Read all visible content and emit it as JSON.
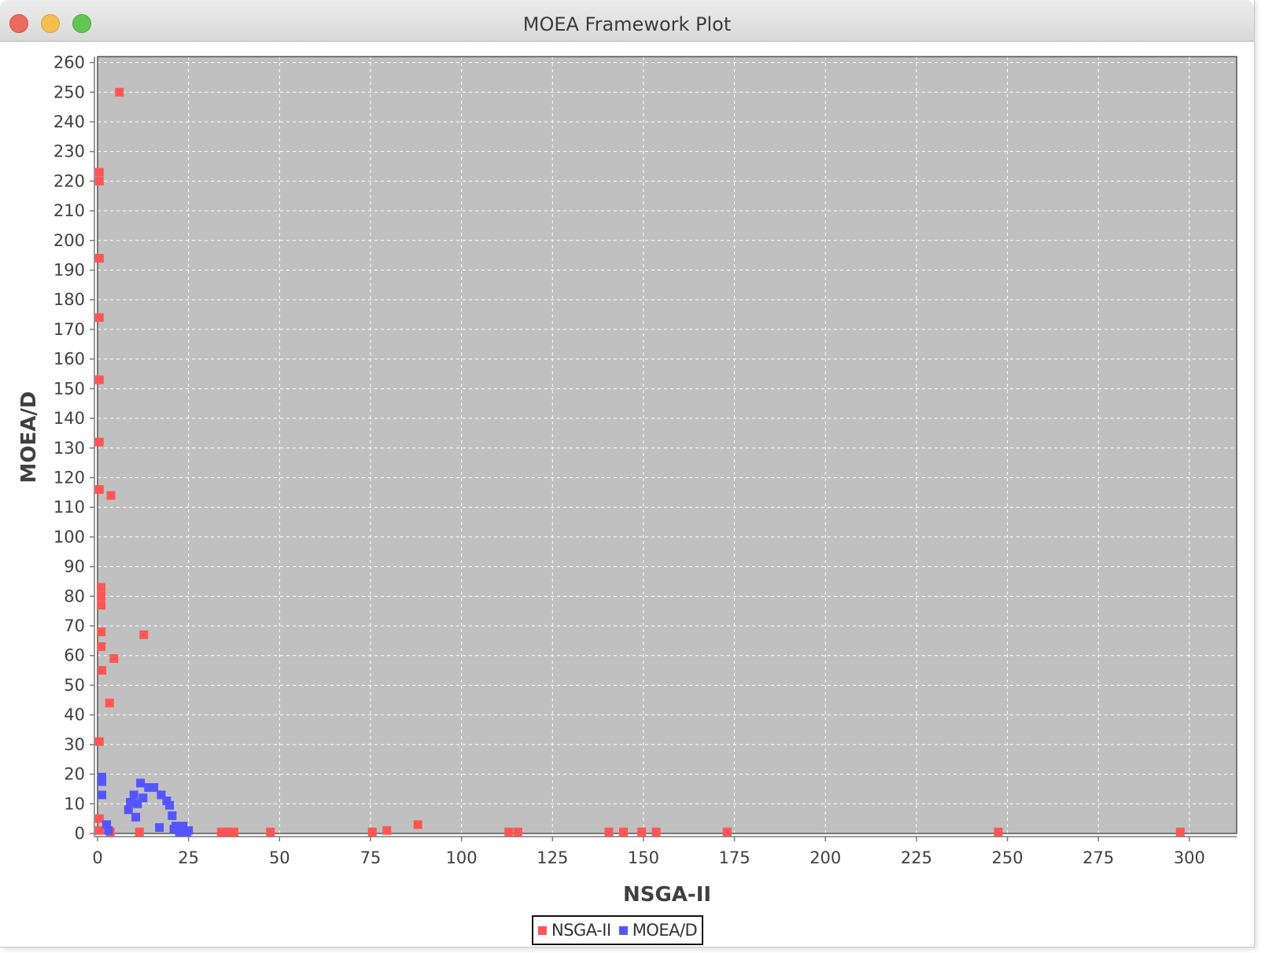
{
  "window": {
    "title": "MOEA Framework Plot"
  },
  "chart_data": {
    "type": "scatter",
    "xlabel": "NSGA-II",
    "ylabel": "MOEA/D",
    "xlim": [
      0,
      313
    ],
    "ylim": [
      0,
      262
    ],
    "xticks": [
      0,
      25,
      50,
      75,
      100,
      125,
      150,
      175,
      200,
      225,
      250,
      275,
      300
    ],
    "yticks": [
      0,
      10,
      20,
      30,
      40,
      50,
      60,
      70,
      80,
      90,
      100,
      110,
      120,
      130,
      140,
      150,
      160,
      170,
      180,
      190,
      200,
      210,
      220,
      230,
      240,
      250,
      260
    ],
    "grid": true,
    "legend_position": "bottom-center",
    "series": [
      {
        "name": "NSGA-II",
        "color": "#ff5555",
        "points": [
          [
            6,
            250
          ],
          [
            0.5,
            223
          ],
          [
            0.5,
            220
          ],
          [
            0.5,
            194
          ],
          [
            0.5,
            174
          ],
          [
            0.5,
            153
          ],
          [
            0.5,
            132
          ],
          [
            0.5,
            116
          ],
          [
            3.7,
            114
          ],
          [
            1,
            83
          ],
          [
            1,
            80
          ],
          [
            1,
            77
          ],
          [
            1,
            68
          ],
          [
            12.7,
            67
          ],
          [
            1,
            63
          ],
          [
            4.5,
            59
          ],
          [
            1.2,
            55
          ],
          [
            3.3,
            44
          ],
          [
            0.5,
            31
          ],
          [
            0.5,
            5
          ],
          [
            0.5,
            1
          ],
          [
            3.5,
            0.5
          ],
          [
            11.5,
            0.5
          ],
          [
            34,
            0.5
          ],
          [
            36,
            0.5
          ],
          [
            37.5,
            0.5
          ],
          [
            47.5,
            0.5
          ],
          [
            75.5,
            0.5
          ],
          [
            79.5,
            1
          ],
          [
            88,
            3
          ],
          [
            113,
            0.5
          ],
          [
            115.5,
            0.5
          ],
          [
            140.5,
            0.5
          ],
          [
            144.5,
            0.5
          ],
          [
            149.5,
            0.5
          ],
          [
            153.5,
            0.5
          ],
          [
            173,
            0.5
          ],
          [
            247.5,
            0.5
          ],
          [
            297.5,
            0.5
          ]
        ]
      },
      {
        "name": "MOEA/D",
        "color": "#5555ff",
        "points": [
          [
            1.2,
            19
          ],
          [
            1.2,
            17.5
          ],
          [
            1.2,
            13
          ],
          [
            2.5,
            3
          ],
          [
            3,
            1
          ],
          [
            8.5,
            8
          ],
          [
            9,
            10.5
          ],
          [
            10,
            13
          ],
          [
            10.5,
            5.5
          ],
          [
            11,
            10
          ],
          [
            11.8,
            17
          ],
          [
            12.5,
            12
          ],
          [
            14,
            15.5
          ],
          [
            15.5,
            15.5
          ],
          [
            17,
            2
          ],
          [
            17.5,
            13
          ],
          [
            19,
            11
          ],
          [
            19.8,
            9.5
          ],
          [
            20.5,
            6
          ],
          [
            21,
            1.5
          ],
          [
            21.5,
            2.5
          ],
          [
            22.5,
            0.5
          ],
          [
            23.5,
            2.5
          ],
          [
            24.5,
            0.5
          ],
          [
            25,
            1
          ]
        ]
      }
    ]
  }
}
